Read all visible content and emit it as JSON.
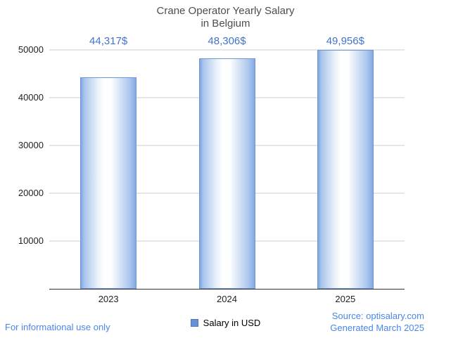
{
  "title": {
    "line1": "Crane Operator Yearly Salary",
    "line2": "in Belgium"
  },
  "chart_data": {
    "type": "bar",
    "title": "Crane Operator Yearly Salary in Belgium",
    "categories": [
      "2023",
      "2024",
      "2025"
    ],
    "series": [
      {
        "name": "Salary in USD",
        "values": [
          44317,
          48306,
          49956
        ]
      }
    ],
    "value_labels": [
      "44,317$",
      "48,306$",
      "49,956$"
    ],
    "xlabel": "",
    "ylabel": "",
    "ylim": [
      0,
      50000
    ],
    "yticks": [
      10000,
      20000,
      30000,
      40000,
      50000
    ],
    "grid": true,
    "legend_position": "bottom",
    "bar_color": "#8fb2e6",
    "label_color": "#4273c9"
  },
  "legend": {
    "label": "Salary in USD"
  },
  "footer": {
    "left": "For informational use only",
    "source": "Source: optisalary.com",
    "generated": "Generated March 2025"
  },
  "colors": {
    "footer_blue": "#4a86e8",
    "gridline": "#cccccc",
    "axis": "#333333"
  }
}
